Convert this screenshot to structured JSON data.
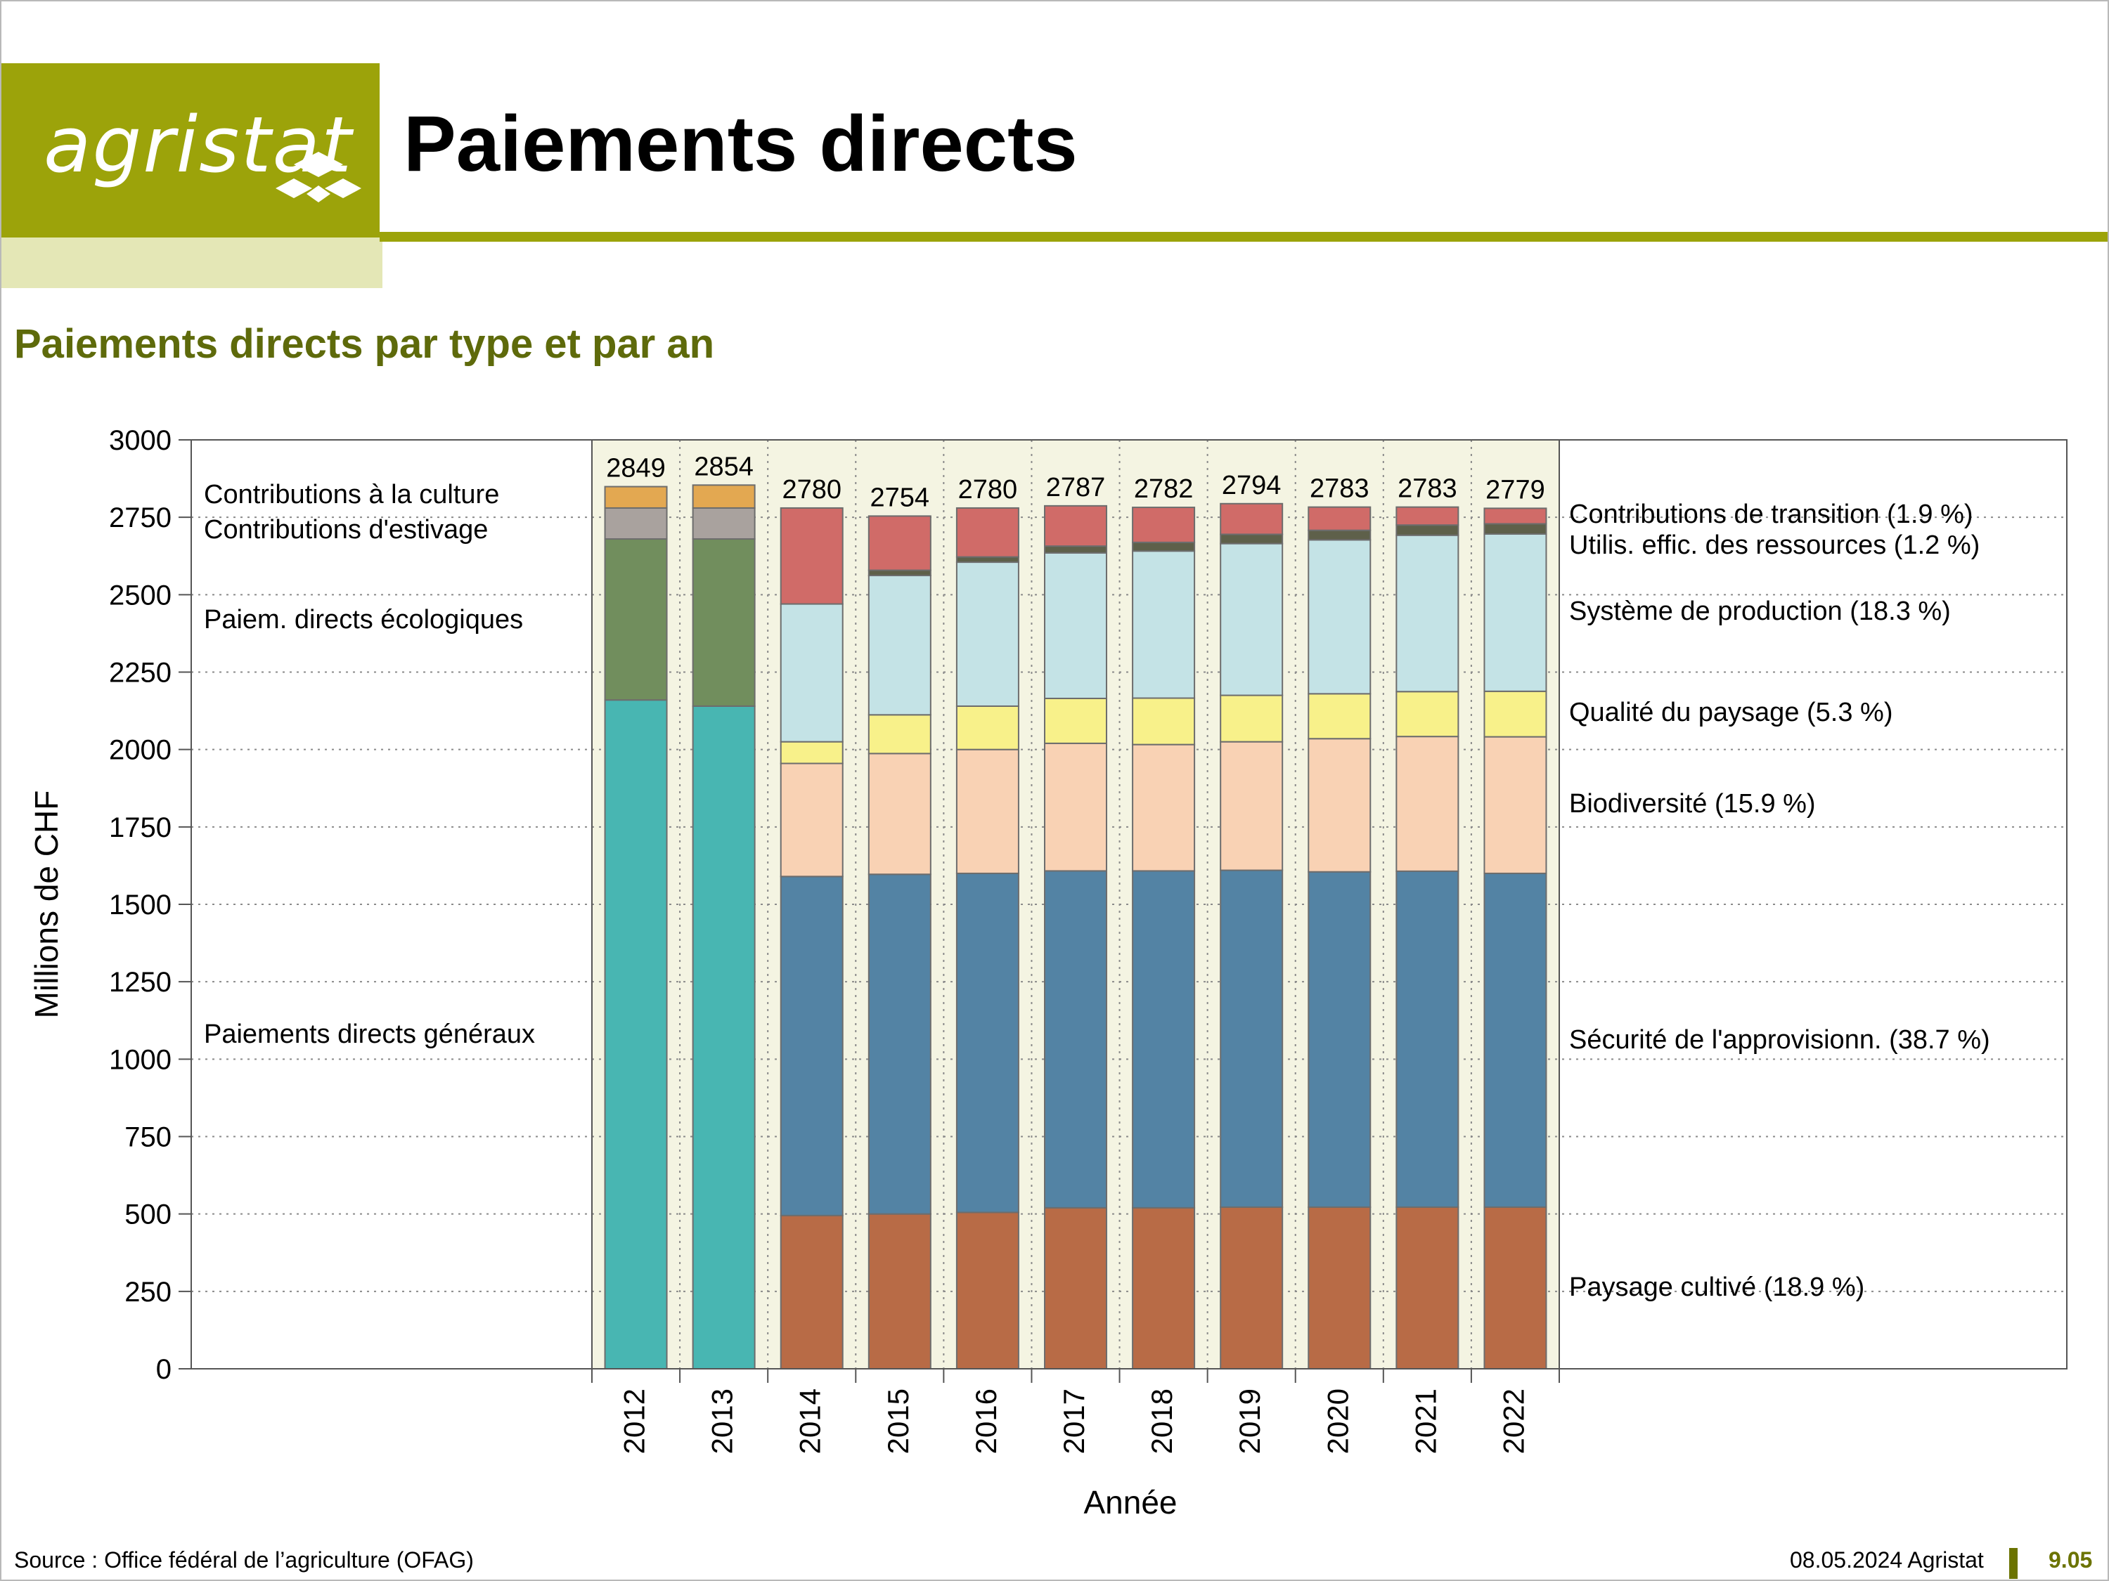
{
  "header": {
    "logo_text": "agristat",
    "title": "Paiements directs",
    "subtitle": "Paiements directs par type et par an"
  },
  "footer": {
    "source": "Source : Office fédéral de l’agriculture (OFAG)",
    "date": "08.05.2024 Agristat",
    "page": "9.05"
  },
  "colors": {
    "brand": "#9ca30a",
    "brand_pale": "#e4e7b6",
    "subtitle": "#5e6a0b",
    "plot_band": "#f4f4e2"
  },
  "chart_data": {
    "type": "bar",
    "stacked": true,
    "xlabel": "Année",
    "ylabel": "Millions de CHF",
    "ylim": [
      0,
      3000
    ],
    "yticks": [
      0,
      250,
      500,
      750,
      1000,
      1250,
      1500,
      1750,
      2000,
      2250,
      2500,
      2750,
      3000
    ],
    "grid": true,
    "categories": [
      "2012",
      "2013",
      "2014",
      "2015",
      "2016",
      "2017",
      "2018",
      "2019",
      "2020",
      "2021",
      "2022"
    ],
    "totals": [
      2849,
      2854,
      2780,
      2754,
      2780,
      2787,
      2782,
      2794,
      2783,
      2783,
      2779
    ],
    "series": [
      {
        "name": "Paiements directs généraux",
        "color": "#48b6b2",
        "values": [
          2160,
          2140,
          0,
          0,
          0,
          0,
          0,
          0,
          0,
          0,
          0
        ]
      },
      {
        "name": "Paiem. directs écologiques",
        "color": "#718e5d",
        "values": [
          520,
          540,
          0,
          0,
          0,
          0,
          0,
          0,
          0,
          0,
          0
        ]
      },
      {
        "name": "Contributions d'estivage",
        "color": "#a9a29e",
        "values": [
          100,
          100,
          0,
          0,
          0,
          0,
          0,
          0,
          0,
          0,
          0
        ]
      },
      {
        "name": "Contributions à la culture",
        "color": "#e3a851",
        "values": [
          69,
          74,
          0,
          0,
          0,
          0,
          0,
          0,
          0,
          0,
          0
        ]
      },
      {
        "name": "Paysage cultivé (18.9 %)",
        "color": "#b86b46",
        "values": [
          0,
          0,
          495,
          500,
          505,
          520,
          520,
          522,
          522,
          522,
          522
        ]
      },
      {
        "name": "Sécurité de l'approvisionn. (38.7 %)",
        "color": "#5383a4",
        "values": [
          0,
          0,
          1095,
          1097,
          1095,
          1088,
          1088,
          1088,
          1083,
          1085,
          1078
        ]
      },
      {
        "name": "Biodiversité (15.9 %)",
        "color": "#f9d2b4",
        "values": [
          0,
          0,
          365,
          390,
          400,
          412,
          408,
          415,
          430,
          435,
          441
        ]
      },
      {
        "name": "Qualité du paysage (5.3 %)",
        "color": "#f8f18a",
        "values": [
          0,
          0,
          70,
          125,
          140,
          145,
          150,
          150,
          145,
          145,
          147
        ]
      },
      {
        "name": "Système de production (18.3 %)",
        "color": "#c4e3e6",
        "values": [
          0,
          0,
          445,
          450,
          465,
          470,
          475,
          490,
          497,
          505,
          508
        ]
      },
      {
        "name": "Utilis. effic. des ressources (1.2 %)",
        "color": "#5e604a",
        "values": [
          0,
          0,
          0,
          17,
          17,
          22,
          28,
          30,
          31,
          33,
          33
        ]
      },
      {
        "name": "Contributions de transition (1.9 %)",
        "color": "#d06b68",
        "values": [
          0,
          0,
          310,
          175,
          158,
          130,
          113,
          99,
          75,
          58,
          50
        ]
      }
    ]
  }
}
